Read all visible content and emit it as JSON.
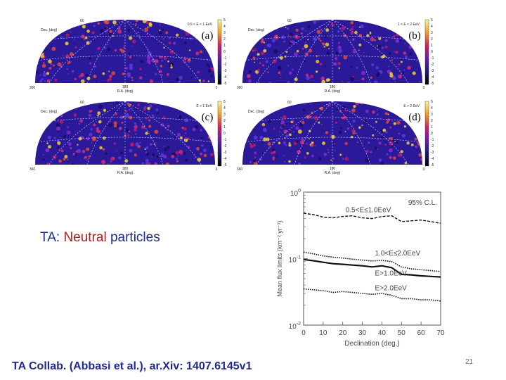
{
  "heading": {
    "prefix": "TA: ",
    "highlight": "Neutral",
    "suffix": " particles"
  },
  "citation": "TA Collab. (Abbasi et al.), ar.Xiv: 1407.6145v1",
  "page_number": "21",
  "colors": {
    "text_blue": "#1f2a8c",
    "highlight_red": "#b11d1d",
    "map_base": "#2a1a9a"
  },
  "sky_maps": [
    {
      "letter": "(a)",
      "energy_label": "0.5 < E < 1 EeV",
      "ylabel": "Dec. (deg)",
      "xlabel": "R.A. (deg)",
      "dec_ticks": [
        "60",
        "30"
      ],
      "ra_ticks": [
        "360",
        "180",
        "0"
      ],
      "scale_ticks": [
        "5",
        "4",
        "3",
        "2",
        "1",
        "0",
        "-1",
        "-2",
        "-3",
        "-4",
        "-5"
      ]
    },
    {
      "letter": "(b)",
      "energy_label": "1 < E < 2 EeV",
      "ylabel": "Dec. (deg)",
      "xlabel": "R.A. (deg)",
      "dec_ticks": [
        "60",
        "30"
      ],
      "ra_ticks": [
        "360",
        "180",
        "0"
      ],
      "scale_ticks": [
        "5",
        "4",
        "3",
        "2",
        "1",
        "0",
        "-1",
        "-2",
        "-3",
        "-4",
        "-5"
      ]
    },
    {
      "letter": "(c)",
      "energy_label": "E > 1 EeV",
      "ylabel": "Dec. (deg)",
      "xlabel": "R.A. (deg)",
      "dec_ticks": [
        "60",
        "30"
      ],
      "ra_ticks": [
        "360",
        "180",
        "0"
      ],
      "scale_ticks": [
        "5",
        "4",
        "3",
        "2",
        "1",
        "0",
        "-1",
        "-2",
        "-3",
        "-4",
        "-5"
      ]
    },
    {
      "letter": "(d)",
      "energy_label": "E > 2 EeV",
      "ylabel": "Dec. (deg)",
      "xlabel": "R.A. (deg)",
      "dec_ticks": [
        "60",
        "30"
      ],
      "ra_ticks": [
        "360",
        "180",
        "0"
      ],
      "scale_ticks": [
        "5",
        "4",
        "3",
        "2",
        "1",
        "0",
        "-1",
        "-2",
        "-3",
        "-4",
        "-5"
      ]
    }
  ],
  "chart_data": {
    "type": "line",
    "title": "",
    "xlabel": "Declination (deg.)",
    "ylabel": "Mean flux limits (km⁻² yr⁻¹)",
    "yscale": "log",
    "xlim": [
      0,
      70
    ],
    "ylim": [
      0.01,
      1
    ],
    "x_ticks": [
      "0",
      "10",
      "20",
      "30",
      "40",
      "50",
      "60",
      "70"
    ],
    "y_tick_labels": [
      {
        "base": "10",
        "exp": "0",
        "value": 1
      },
      {
        "base": "10",
        "exp": "-1",
        "value": 0.1
      },
      {
        "base": "10",
        "exp": "-2",
        "value": 0.01
      }
    ],
    "annotation": "95% C.L.",
    "x": [
      0,
      5,
      10,
      15,
      20,
      25,
      30,
      35,
      40,
      45,
      50,
      55,
      60,
      65,
      70
    ],
    "series": [
      {
        "name": "0.5<E≤1.0EeV",
        "style": "dashed",
        "values": [
          0.48,
          0.46,
          0.42,
          0.41,
          0.43,
          0.44,
          0.41,
          0.4,
          0.43,
          0.44,
          0.36,
          0.37,
          0.38,
          0.36,
          0.34
        ]
      },
      {
        "name": "1.0<E≤2.0EeV",
        "style": "dotted",
        "values": [
          0.125,
          0.118,
          0.11,
          0.105,
          0.102,
          0.098,
          0.095,
          0.092,
          0.094,
          0.09,
          0.075,
          0.07,
          0.068,
          0.066,
          0.064
        ]
      },
      {
        "name": "E>1.0EeV",
        "style": "solid",
        "values": [
          0.097,
          0.093,
          0.088,
          0.084,
          0.082,
          0.08,
          0.078,
          0.075,
          0.078,
          0.073,
          0.058,
          0.057,
          0.055,
          0.054,
          0.053
        ]
      },
      {
        "name": "E>2.0EeV",
        "style": "dotted",
        "values": [
          0.035,
          0.034,
          0.033,
          0.031,
          0.032,
          0.031,
          0.03,
          0.029,
          0.03,
          0.028,
          0.025,
          0.025,
          0.024,
          0.024,
          0.023
        ]
      }
    ]
  }
}
